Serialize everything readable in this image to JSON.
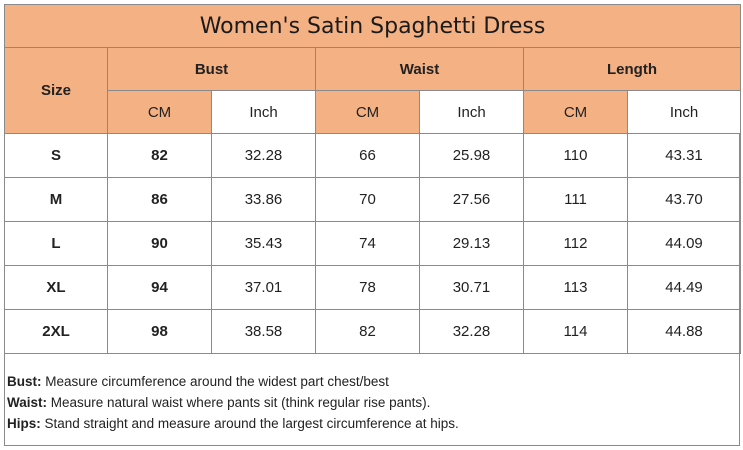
{
  "title": "Women's Satin Spaghetti  Dress",
  "headers": {
    "size": "Size",
    "groups": [
      "Bust",
      "Waist",
      "Length"
    ],
    "units": [
      "CM",
      "Inch",
      "CM",
      "Inch",
      "CM",
      "Inch"
    ]
  },
  "rows": [
    {
      "size": "S",
      "bust_cm": "82",
      "bust_in": "32.28",
      "waist_cm": "66",
      "waist_in": "25.98",
      "length_cm": "110",
      "length_in": "43.31"
    },
    {
      "size": "M",
      "bust_cm": "86",
      "bust_in": "33.86",
      "waist_cm": "70",
      "waist_in": "27.56",
      "length_cm": "111",
      "length_in": "43.70"
    },
    {
      "size": "L",
      "bust_cm": "90",
      "bust_in": "35.43",
      "waist_cm": "74",
      "waist_in": "29.13",
      "length_cm": "112",
      "length_in": "44.09"
    },
    {
      "size": "XL",
      "bust_cm": "94",
      "bust_in": "37.01",
      "waist_cm": "78",
      "waist_in": "30.71",
      "length_cm": "113",
      "length_in": "44.49"
    },
    {
      "size": "2XL",
      "bust_cm": "98",
      "bust_in": "38.58",
      "waist_cm": "82",
      "waist_in": "32.28",
      "length_cm": "114",
      "length_in": "44.88"
    }
  ],
  "notes": [
    {
      "key": "Bust:",
      "text": " Measure circumference around the widest part chest/best"
    },
    {
      "key": "Waist:",
      "text": " Measure natural waist where pants sit (think regular rise pants)."
    },
    {
      "key": "Hips:",
      "text": " Stand straight and measure around the largest circumference at hips."
    }
  ],
  "colors": {
    "header_fill": "#f4b183",
    "border": "#8a8a8a"
  }
}
